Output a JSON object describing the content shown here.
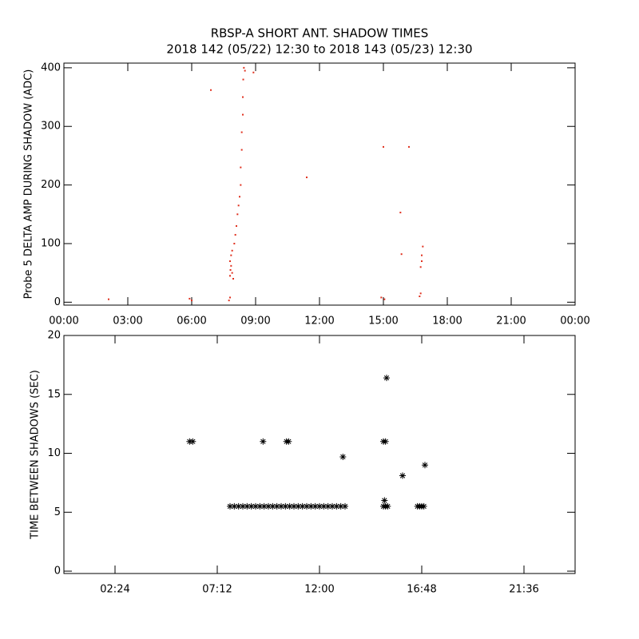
{
  "chart_data": [
    {
      "type": "scatter",
      "title": "RBSP-A SHORT ANT. SHADOW TIMES",
      "subtitle": "2018 142 (05/22) 12:30 to 2018 143 (05/23) 12:30",
      "y_label": "Probe 5 DELTA AMP DURING SHADOW (ADC)",
      "color": "#e0301e",
      "marker": "dot",
      "x": [
        2.1,
        5.9,
        6.0,
        6.9,
        7.75,
        7.8,
        7.8,
        7.82,
        7.85,
        7.8,
        7.85,
        7.9,
        7.9,
        7.95,
        8.0,
        8.05,
        8.1,
        8.15,
        8.2,
        8.25,
        8.3,
        8.3,
        8.35,
        8.35,
        8.4,
        8.4,
        8.42,
        8.45,
        8.5,
        8.9,
        11.4,
        14.9,
        15.0,
        15.05,
        15.8,
        15.85,
        16.2,
        16.7,
        16.75,
        16.8,
        16.8,
        16.85,
        16.75
      ],
      "values": [
        5,
        6,
        3,
        362,
        3,
        8,
        45,
        55,
        62,
        70,
        80,
        88,
        50,
        40,
        100,
        115,
        130,
        150,
        165,
        180,
        200,
        230,
        260,
        290,
        320,
        350,
        380,
        400,
        395,
        392,
        213,
        8,
        265,
        5,
        153,
        82,
        265,
        10,
        60,
        70,
        80,
        95,
        15
      ],
      "xlim": [
        0,
        24
      ],
      "xticks": [
        {
          "value": 0,
          "label": "00:00"
        },
        {
          "value": 3,
          "label": "03:00"
        },
        {
          "value": 6,
          "label": "06:00"
        },
        {
          "value": 9,
          "label": "09:00"
        },
        {
          "value": 12,
          "label": "12:00"
        },
        {
          "value": 15,
          "label": "15:00"
        },
        {
          "value": 18,
          "label": "18:00"
        },
        {
          "value": 21,
          "label": "21:00"
        },
        {
          "value": 24,
          "label": "00:00"
        }
      ],
      "ylim": [
        -5,
        408
      ],
      "yticks": [
        0,
        100,
        200,
        300,
        400
      ]
    },
    {
      "type": "scatter",
      "y_label": "TIME BETWEEN SHADOWS (SEC)",
      "color": "#000000",
      "marker": "asterisk",
      "x": [
        7.8,
        8.0,
        8.2,
        8.4,
        8.6,
        8.8,
        9.0,
        9.2,
        9.4,
        9.6,
        9.8,
        10.0,
        10.2,
        10.4,
        10.6,
        10.8,
        11.0,
        11.2,
        11.4,
        11.6,
        11.8,
        12.0,
        12.2,
        12.4,
        12.6,
        12.8,
        13.0,
        13.2,
        15.0,
        15.1,
        15.2,
        16.6,
        16.7,
        16.8,
        16.9,
        5.9,
        6.05,
        9.35,
        10.45,
        10.55,
        13.1,
        15.0,
        15.1,
        15.05,
        15.15,
        15.9,
        16.95
      ],
      "values": [
        5.5,
        5.5,
        5.5,
        5.5,
        5.5,
        5.5,
        5.5,
        5.5,
        5.5,
        5.5,
        5.5,
        5.5,
        5.5,
        5.5,
        5.5,
        5.5,
        5.5,
        5.5,
        5.5,
        5.5,
        5.5,
        5.5,
        5.5,
        5.5,
        5.5,
        5.5,
        5.5,
        5.5,
        5.5,
        5.5,
        5.5,
        5.5,
        5.5,
        5.5,
        5.5,
        11,
        11,
        11,
        11,
        11,
        9.7,
        11,
        11,
        6,
        16.4,
        8.1,
        9
      ],
      "xlim": [
        0,
        24
      ],
      "xticks": [
        {
          "value": 2.4,
          "label": "02:24"
        },
        {
          "value": 7.2,
          "label": "07:12"
        },
        {
          "value": 12,
          "label": "12:00"
        },
        {
          "value": 16.8,
          "label": "16:48"
        },
        {
          "value": 21.6,
          "label": "21:36"
        }
      ],
      "ylim": [
        -0.2,
        20
      ],
      "yticks": [
        0,
        5,
        10,
        15,
        20
      ]
    }
  ]
}
